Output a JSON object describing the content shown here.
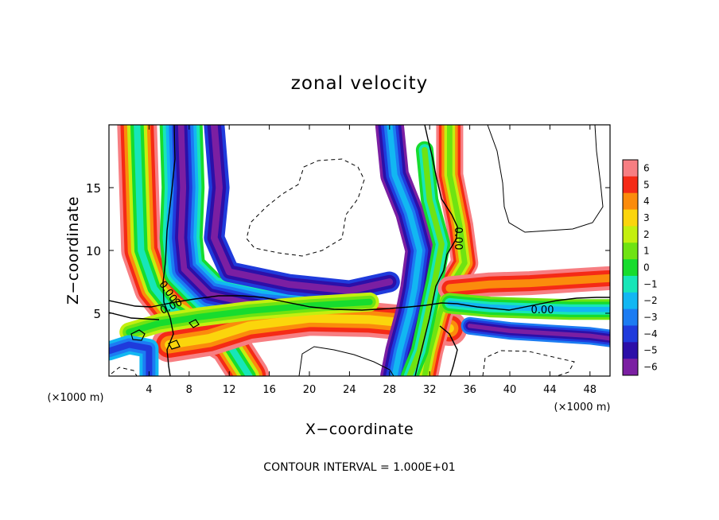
{
  "chart_data": {
    "type": "heatmap",
    "title": "zonal velocity",
    "xlabel": "X−coordinate",
    "ylabel": "Z−coordinate",
    "x_unit": "(×1000 m)",
    "y_unit": "(×1000 m)",
    "xlim": [
      0,
      50
    ],
    "ylim": [
      0,
      20
    ],
    "xticks": [
      4,
      8,
      12,
      16,
      20,
      24,
      28,
      32,
      36,
      40,
      44,
      48
    ],
    "yticks": [
      5,
      10,
      15
    ],
    "colorbar": {
      "min": -6,
      "max": 6,
      "ticks": [
        6,
        5,
        4,
        3,
        2,
        1,
        0,
        -1,
        -2,
        -3,
        -4,
        -5,
        -6
      ],
      "tick_labels": [
        "6",
        "5",
        "4",
        "3",
        "2",
        "1",
        "0",
        "−1",
        "−2",
        "−3",
        "−4",
        "−5",
        "−6"
      ]
    },
    "contour_labels": [
      "0.00",
      "0.00",
      "0.00",
      "0.00"
    ],
    "footer": "CONTOUR INTERVAL = 1.000E+01",
    "grid": false
  }
}
